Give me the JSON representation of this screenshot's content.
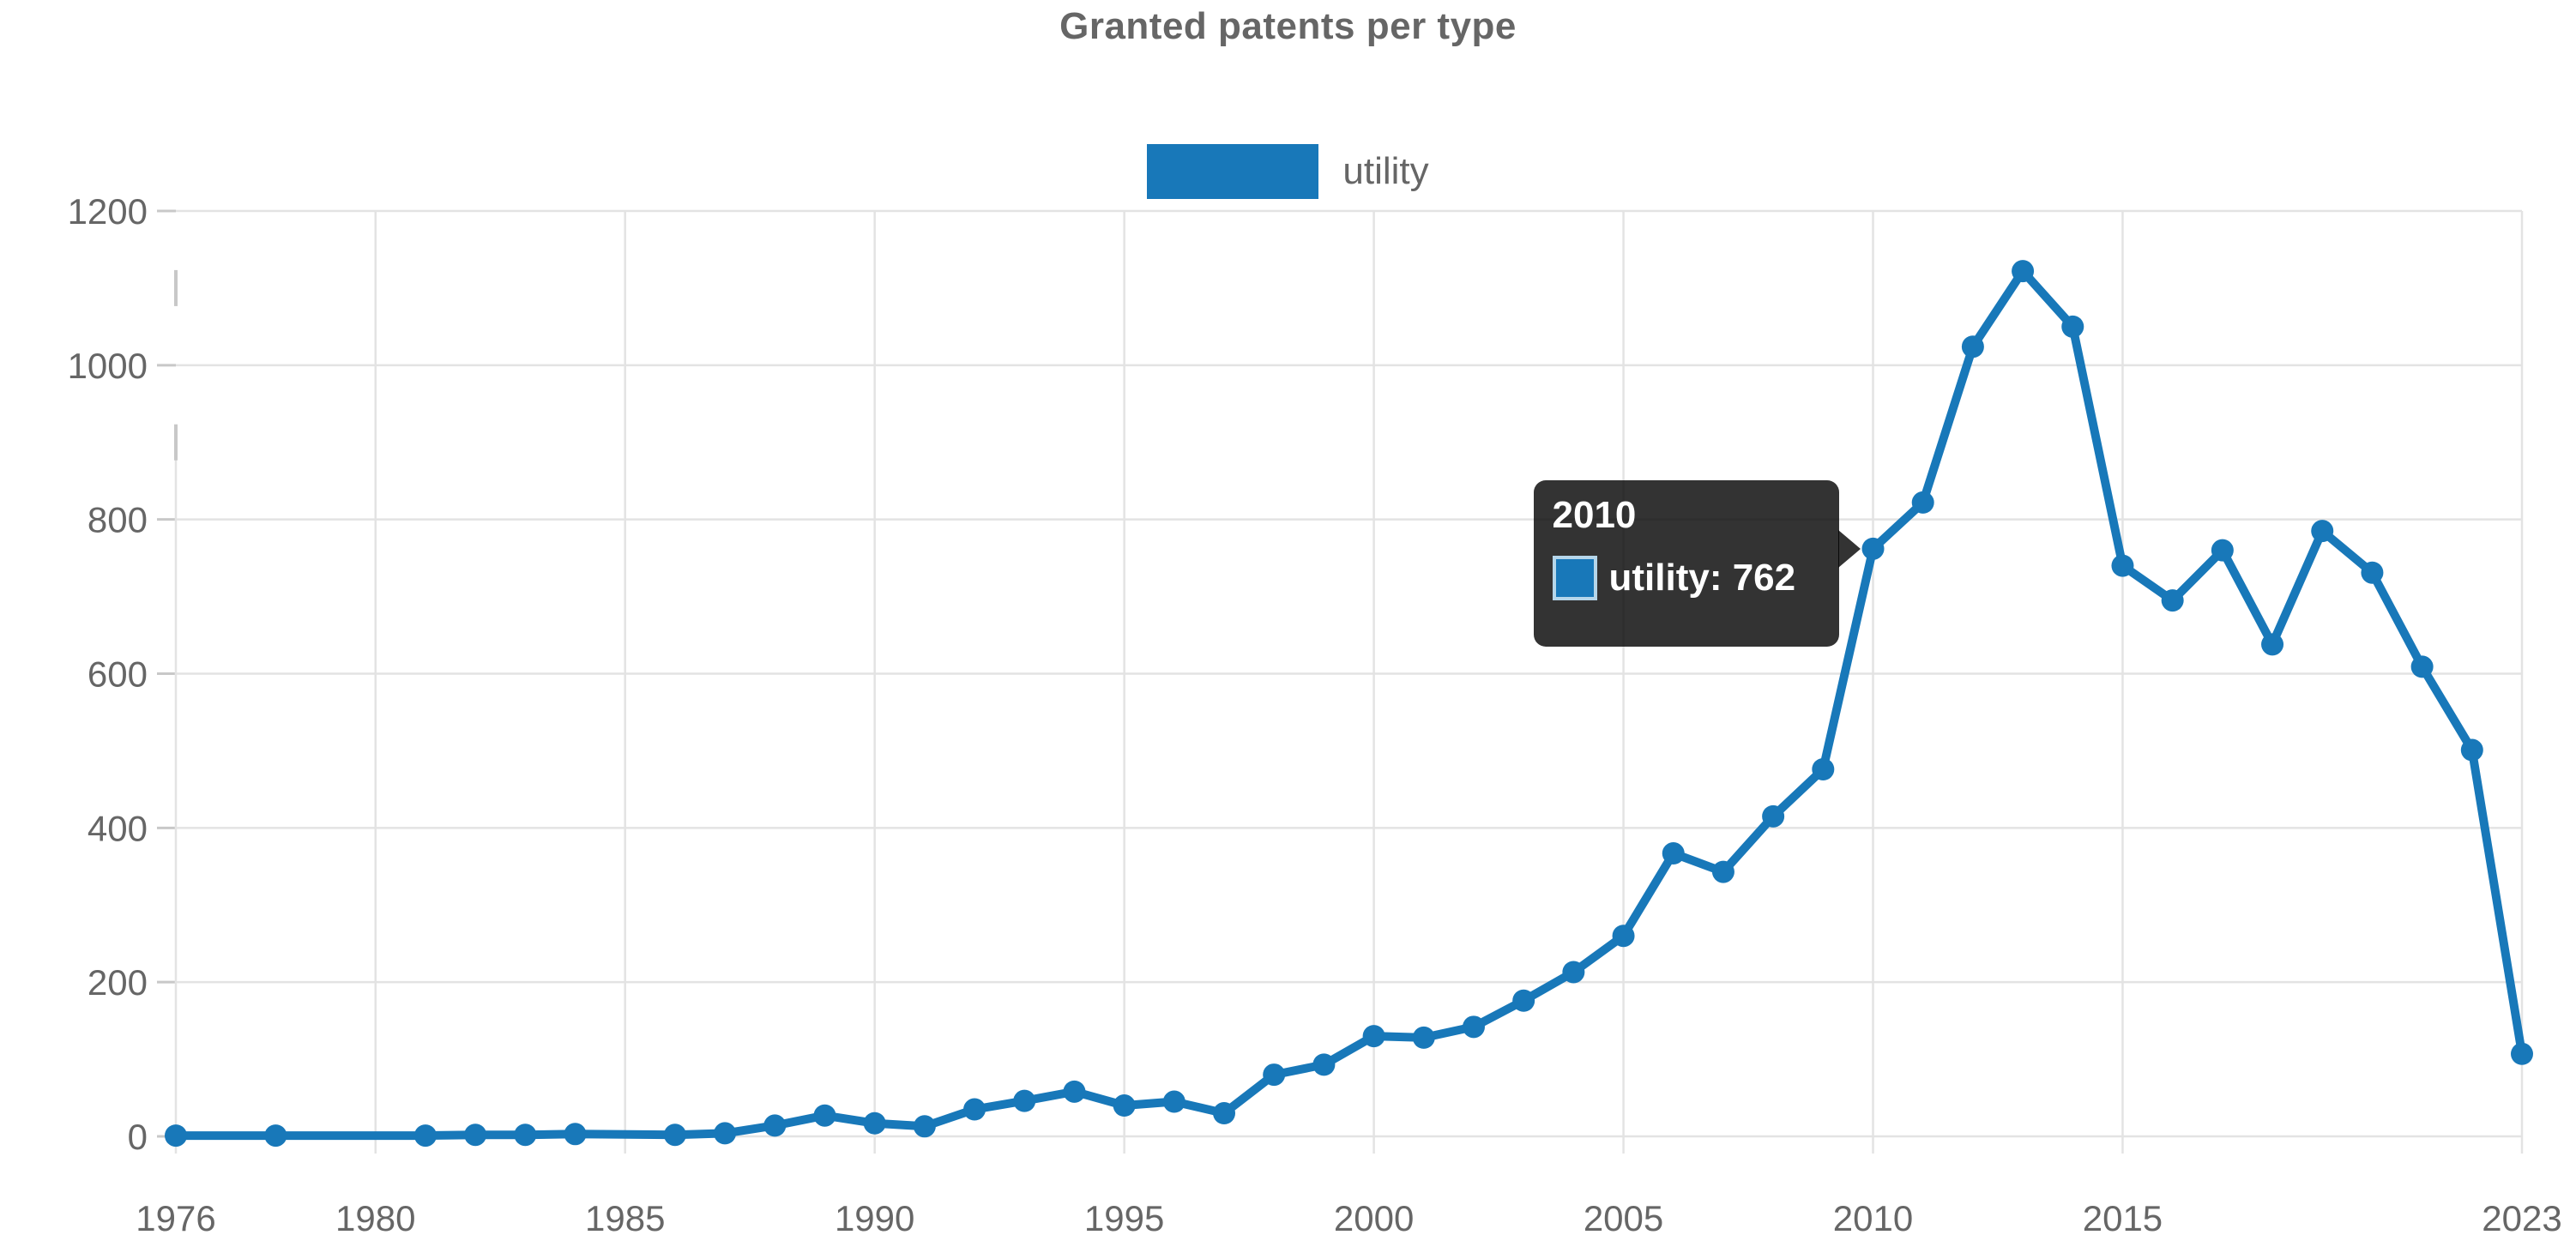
{
  "chart_data": {
    "type": "line",
    "title": "Granted patents per type",
    "legend_position": "top",
    "grid": true,
    "xlim": [
      1976,
      2023
    ],
    "ylim": [
      0,
      1200
    ],
    "x_ticks": [
      "1976",
      "1980",
      "1985",
      "1990",
      "1995",
      "2000",
      "2005",
      "2010",
      "2015",
      "2023"
    ],
    "y_ticks": [
      0,
      200,
      400,
      600,
      800,
      1000,
      1200
    ],
    "series": [
      {
        "name": "utility",
        "color": "#1878b9",
        "points": [
          [
            1976,
            1
          ],
          [
            1978,
            1
          ],
          [
            1981,
            1
          ],
          [
            1982,
            2
          ],
          [
            1983,
            2
          ],
          [
            1984,
            3
          ],
          [
            1986,
            2
          ],
          [
            1987,
            4
          ],
          [
            1988,
            14
          ],
          [
            1989,
            27
          ],
          [
            1990,
            17
          ],
          [
            1991,
            13
          ],
          [
            1992,
            35
          ],
          [
            1993,
            46
          ],
          [
            1994,
            58
          ],
          [
            1995,
            40
          ],
          [
            1996,
            45
          ],
          [
            1997,
            30
          ],
          [
            1998,
            80
          ],
          [
            1999,
            93
          ],
          [
            2000,
            130
          ],
          [
            2001,
            128
          ],
          [
            2002,
            142
          ],
          [
            2003,
            176
          ],
          [
            2004,
            213
          ],
          [
            2005,
            260
          ],
          [
            2006,
            367
          ],
          [
            2007,
            343
          ],
          [
            2008,
            415
          ],
          [
            2009,
            476
          ],
          [
            2010,
            762
          ],
          [
            2011,
            822
          ],
          [
            2012,
            1024
          ],
          [
            2013,
            1122
          ],
          [
            2014,
            1050
          ],
          [
            2015,
            740
          ],
          [
            2016,
            695
          ],
          [
            2017,
            760
          ],
          [
            2018,
            638
          ],
          [
            2019,
            785
          ],
          [
            2020,
            731
          ],
          [
            2021,
            609
          ],
          [
            2022,
            501
          ],
          [
            2023,
            107
          ]
        ]
      }
    ],
    "tooltip": {
      "title": "2010",
      "label": "utility: 762",
      "anchor_year": 2010,
      "anchor_value": 762,
      "background": "rgba(0,0,0,0.8)"
    },
    "colors": {
      "series_blue": "#1878b9",
      "axis_text": "#666666",
      "title_text": "#666666",
      "grid": "#e3e3e3",
      "tick_stub": "#c8c8c8"
    }
  }
}
